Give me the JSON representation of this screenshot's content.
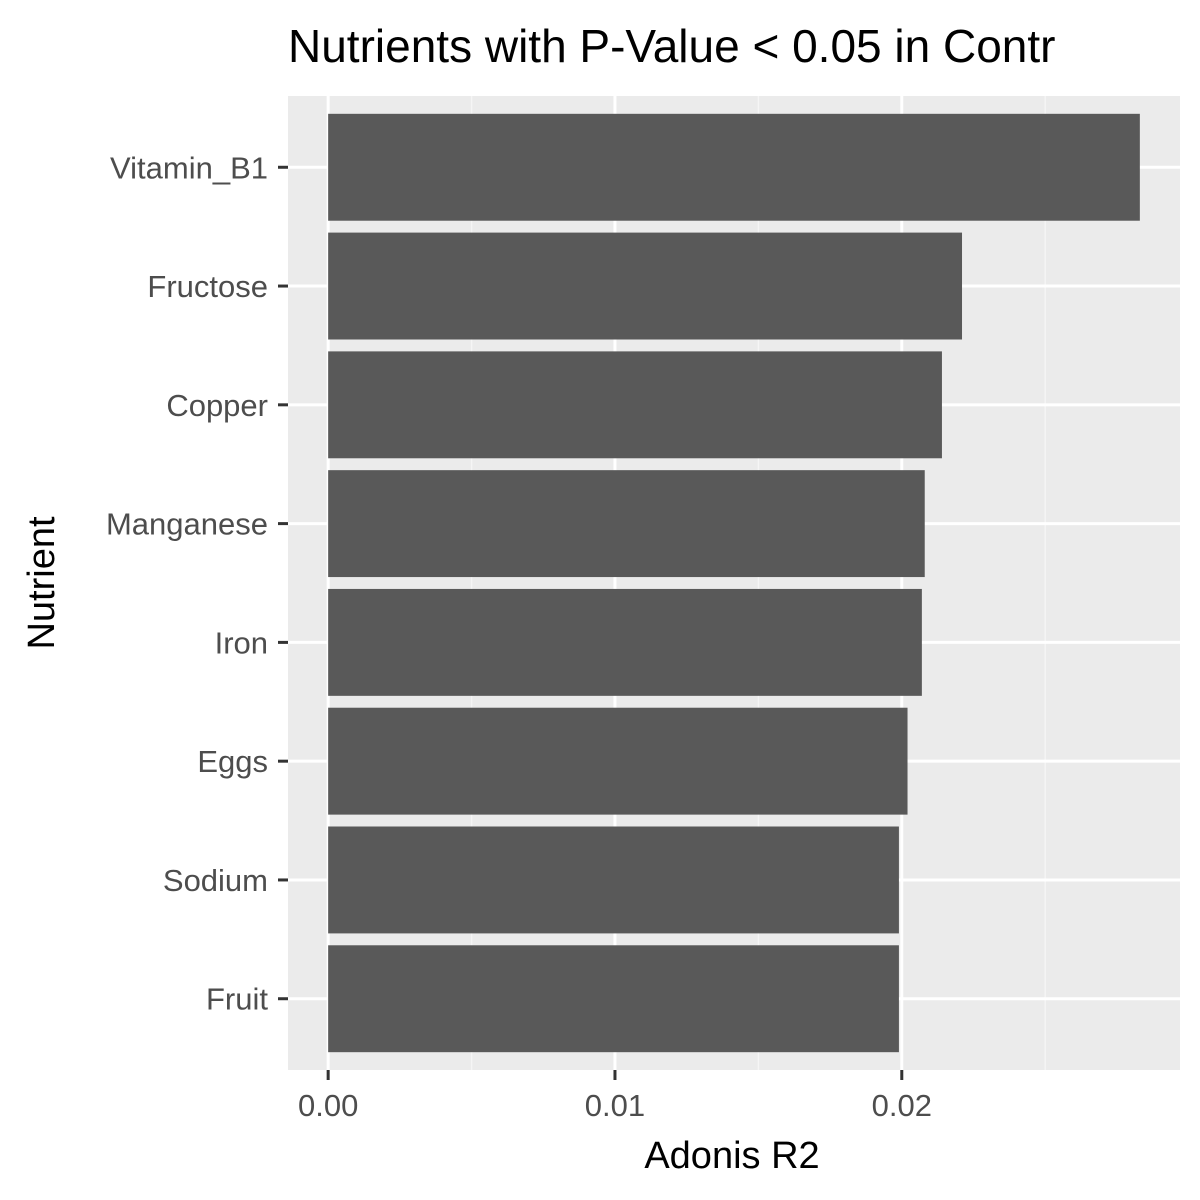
{
  "chart_data": {
    "type": "bar",
    "orientation": "horizontal",
    "title": "Nutrients with P-Value < 0.05 in Contr",
    "xlabel": "Adonis R2",
    "ylabel": "Nutrient",
    "categories": [
      "Vitamin_B1",
      "Fructose",
      "Copper",
      "Manganese",
      "Iron",
      "Eggs",
      "Sodium",
      "Fruit"
    ],
    "values": [
      0.0283,
      0.0221,
      0.0214,
      0.0208,
      0.0207,
      0.0202,
      0.0199,
      0.0199
    ],
    "xlim": [
      -0.0014,
      0.0297
    ],
    "xticks": [
      0.0,
      0.01,
      0.02
    ],
    "xtick_labels": [
      "0.00",
      "0.01",
      "0.02"
    ],
    "grid": true,
    "legend": "none",
    "colors": {
      "bar": "#595959",
      "panel_background": "#ebebeb",
      "grid_major": "#ffffff",
      "grid_minor": "#f5f5f5",
      "tick": "#333333"
    }
  }
}
